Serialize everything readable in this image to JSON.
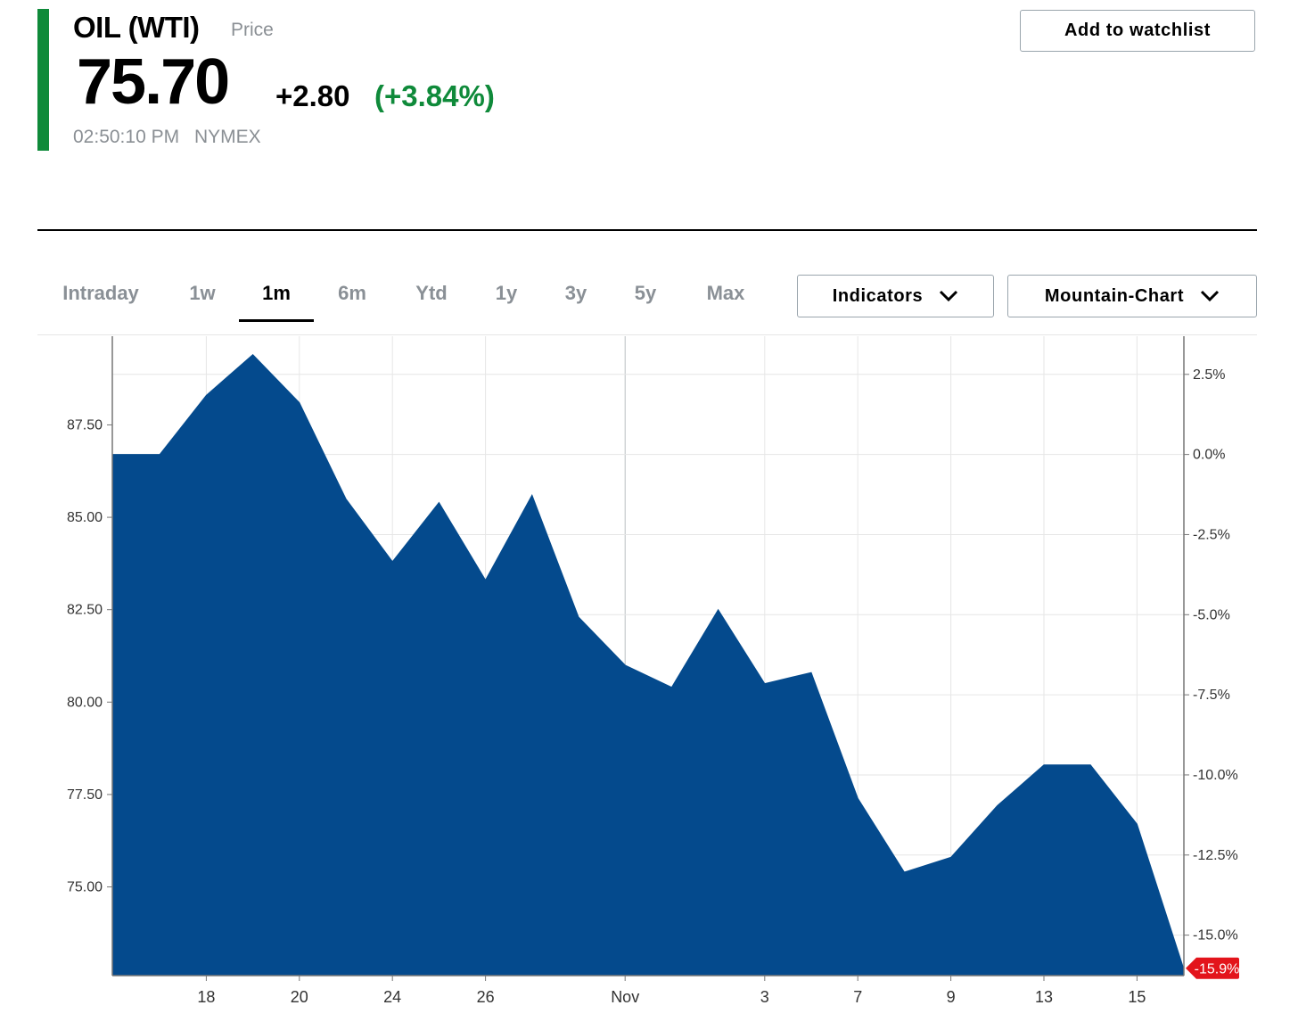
{
  "quote": {
    "symbol": "OIL (WTI)",
    "price_label": "Price",
    "last": "75.70",
    "change": "+2.80",
    "change_pct": "(+3.84%)",
    "time": "02:50:10 PM",
    "exchange": "NYMEX",
    "accent_color": "#0f8a3a"
  },
  "actions": {
    "watchlist_label": "Add to watchlist"
  },
  "tabs": [
    {
      "label": "Intraday",
      "active": false
    },
    {
      "label": "1w",
      "active": false
    },
    {
      "label": "1m",
      "active": true
    },
    {
      "label": "6m",
      "active": false
    },
    {
      "label": "Ytd",
      "active": false
    },
    {
      "label": "1y",
      "active": false
    },
    {
      "label": "3y",
      "active": false
    },
    {
      "label": "5y",
      "active": false
    },
    {
      "label": "Max",
      "active": false
    }
  ],
  "controls": {
    "indicators_label": "Indicators",
    "chart_type_label": "Mountain-Chart",
    "chevron_icon": "chevron-down-icon"
  },
  "chart_data": {
    "type": "area",
    "color": "#044a8d",
    "x_tick_labels": [
      "18",
      "20",
      "24",
      "26",
      "Nov",
      "3",
      "7",
      "9",
      "13",
      "15"
    ],
    "y_left_ticks": [
      "75.00",
      "77.50",
      "80.00",
      "82.50",
      "85.00",
      "87.50"
    ],
    "y_left_values": [
      75.0,
      77.5,
      80.0,
      82.5,
      85.0,
      87.5
    ],
    "y_right_ticks": [
      "2.5%",
      "0.0%",
      "-2.5%",
      "-5.0%",
      "-7.5%",
      "-10.0%",
      "-12.5%",
      "-15.0%"
    ],
    "y_right_values": [
      2.5,
      0.0,
      -2.5,
      -5.0,
      -7.5,
      -10.0,
      -12.5,
      -15.0
    ],
    "ylim": [
      72.6,
      89.9
    ],
    "current_change_label": "-15.9%",
    "current_change_color": "#e3141b",
    "series": [
      {
        "x": [
          "Oct 16",
          "Oct 17",
          "Oct 18",
          "Oct 19",
          "Oct 20",
          "Oct 23",
          "Oct 24",
          "Oct 25",
          "Oct 26",
          "Oct 27",
          "Oct 30",
          "Oct 31",
          "Nov 1",
          "Nov 2",
          "Nov 3",
          "Nov 6",
          "Nov 7",
          "Nov 8",
          "Nov 9",
          "Nov 10",
          "Nov 13",
          "Nov 14",
          "Nov 15",
          "Nov 16"
        ],
        "values": [
          86.7,
          86.7,
          88.3,
          89.4,
          88.1,
          85.5,
          83.8,
          85.4,
          83.3,
          85.6,
          82.3,
          81.0,
          80.4,
          82.5,
          80.5,
          80.8,
          77.4,
          75.4,
          75.8,
          77.2,
          78.3,
          78.3,
          76.7,
          72.8
        ]
      }
    ],
    "grid": true
  }
}
